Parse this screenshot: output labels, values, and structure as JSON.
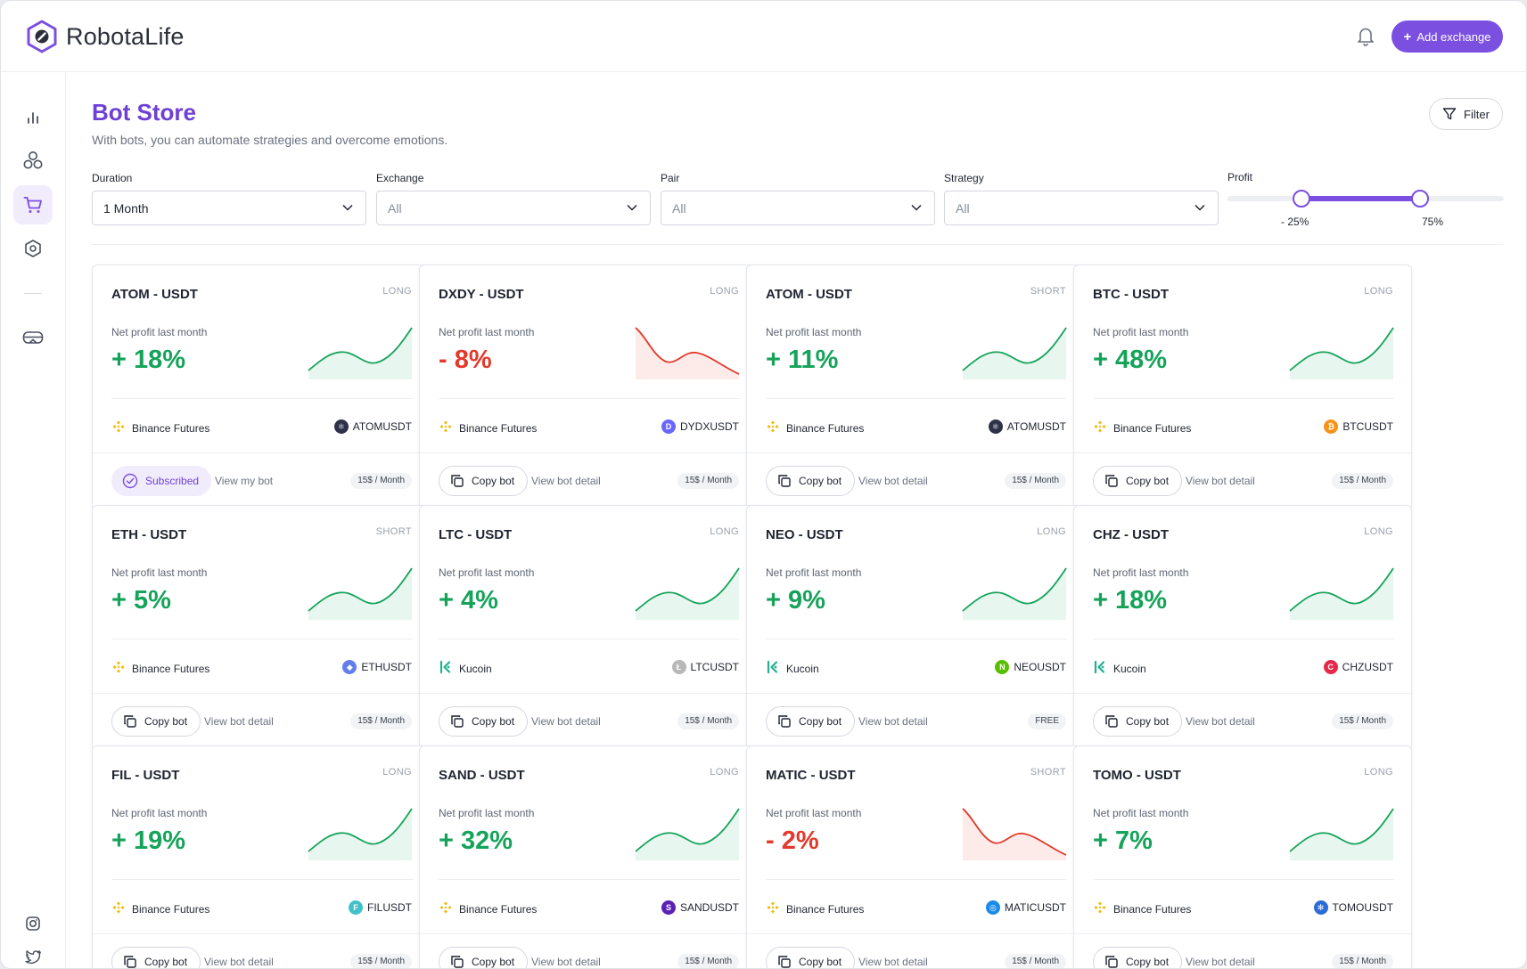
{
  "app": {
    "name": "RobotaLife"
  },
  "header": {
    "add_exchange_label": "Add exchange"
  },
  "page": {
    "title": "Bot Store",
    "subtitle": "With bots, you can automate strategies and overcome emotions.",
    "filter_label": "Filter"
  },
  "sidebar": {
    "items": [
      {
        "icon": "bar-chart-icon"
      },
      {
        "icon": "circles-icon"
      },
      {
        "icon": "cart-icon",
        "active": true
      },
      {
        "icon": "hexagon-icon"
      },
      {
        "icon": "vr-headset-icon"
      }
    ],
    "bottom": [
      {
        "icon": "instagram-icon"
      },
      {
        "icon": "twitter-icon"
      }
    ]
  },
  "filters": {
    "duration": {
      "label": "Duration",
      "value": "1 Month"
    },
    "exchange": {
      "label": "Exchange",
      "value": "All"
    },
    "pair": {
      "label": "Pair",
      "value": "All"
    },
    "strategy": {
      "label": "Strategy",
      "value": "All"
    },
    "profit": {
      "label": "Profit",
      "min_label": "- 25%",
      "max_label": "75%",
      "min": -25,
      "max": 75
    }
  },
  "colors": {
    "accent": "#7b4fe0",
    "positive": "#15a35a",
    "negative": "#e23a2b"
  },
  "labels": {
    "net_profit": "Net profit last month",
    "copy_bot": "Copy bot",
    "view_bot_detail": "View bot detail",
    "subscribed": "Subscribed",
    "view_my_bot": "View my bot"
  },
  "cards": [
    {
      "pair": "ATOM - USDT",
      "side": "LONG",
      "profit": "+ 18%",
      "trend": "up",
      "exchange": "Binance Futures",
      "symbol": "ATOMUSDT",
      "coin_color": "#2e3148",
      "coin_glyph": "⚛",
      "price": "15$ / Month",
      "subscribed": true
    },
    {
      "pair": "DXDY - USDT",
      "side": "LONG",
      "profit": "- 8%",
      "trend": "down",
      "exchange": "Binance Futures",
      "symbol": "DYDXUSDT",
      "coin_color": "#6966ff",
      "coin_glyph": "D",
      "price": "15$ / Month"
    },
    {
      "pair": "ATOM - USDT",
      "side": "SHORT",
      "profit": "+ 11%",
      "trend": "up",
      "exchange": "Binance Futures",
      "symbol": "ATOMUSDT",
      "coin_color": "#2e3148",
      "coin_glyph": "⚛",
      "price": "15$ / Month"
    },
    {
      "pair": "BTC - USDT",
      "side": "LONG",
      "profit": "+ 48%",
      "trend": "up",
      "exchange": "Binance Futures",
      "symbol": "BTCUSDT",
      "coin_color": "#f7931a",
      "coin_glyph": "₿",
      "price": "15$ / Month"
    },
    {
      "pair": "ETH - USDT",
      "side": "SHORT",
      "profit": "+ 5%",
      "trend": "up",
      "exchange": "Binance Futures",
      "symbol": "ETHUSDT",
      "coin_color": "#627eea",
      "coin_glyph": "◆",
      "price": "15$ / Month"
    },
    {
      "pair": "LTC - USDT",
      "side": "LONG",
      "profit": "+ 4%",
      "trend": "up",
      "exchange": "Kucoin",
      "symbol": "LTCUSDT",
      "coin_color": "#b8b8b8",
      "coin_glyph": "Ł",
      "price": "15$ / Month"
    },
    {
      "pair": "NEO - USDT",
      "side": "LONG",
      "profit": "+ 9%",
      "trend": "up",
      "exchange": "Kucoin",
      "symbol": "NEOUSDT",
      "coin_color": "#58bf00",
      "coin_glyph": "N",
      "price": "FREE"
    },
    {
      "pair": "CHZ - USDT",
      "side": "LONG",
      "profit": "+ 18%",
      "trend": "up",
      "exchange": "Kucoin",
      "symbol": "CHZUSDT",
      "coin_color": "#e6294a",
      "coin_glyph": "C",
      "price": "15$ / Month"
    },
    {
      "pair": "FIL - USDT",
      "side": "LONG",
      "profit": "+ 19%",
      "trend": "up",
      "exchange": "Binance Futures",
      "symbol": "FILUSDT",
      "coin_color": "#42c1ca",
      "coin_glyph": "F",
      "price": "15$ / Month"
    },
    {
      "pair": "SAND - USDT",
      "side": "LONG",
      "profit": "+ 32%",
      "trend": "up",
      "exchange": "Binance Futures",
      "symbol": "SANDUSDT",
      "coin_color": "#5b21b6",
      "coin_glyph": "S",
      "price": "15$ / Month"
    },
    {
      "pair": "MATIC - USDT",
      "side": "SHORT",
      "profit": "- 2%",
      "trend": "down",
      "exchange": "Binance Futures",
      "symbol": "MATICUSDT",
      "coin_color": "#1a8ce8",
      "coin_glyph": "◎",
      "price": "15$ / Month"
    },
    {
      "pair": "TOMO - USDT",
      "side": "LONG",
      "profit": "+ 7%",
      "trend": "up",
      "exchange": "Binance Futures",
      "symbol": "TOMOUSDT",
      "coin_color": "#2b6cd6",
      "coin_glyph": "✻",
      "price": "15$ / Month"
    }
  ]
}
